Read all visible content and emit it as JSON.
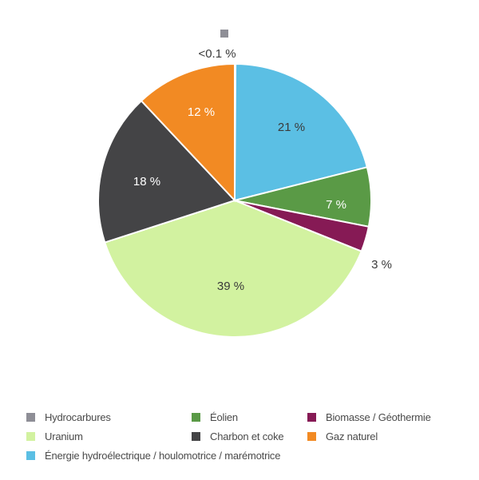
{
  "chart_data": {
    "type": "pie",
    "title": "",
    "start_angle_deg": 0,
    "direction": "clockwise",
    "slices": [
      {
        "name": "Hydrocarbures",
        "value": 0.1,
        "label": "<0.1 %",
        "color": "#8e8e96",
        "label_color": "#3a3a3a",
        "label_outside": true
      },
      {
        "name": "Énergie hydroélectrique / houlomotrice / marémotrice",
        "value": 21,
        "label": "21 %",
        "color": "#5bbfe4",
        "label_color": "#3a3a3a",
        "label_outside": false
      },
      {
        "name": "Éolien",
        "value": 7,
        "label": "7 %",
        "color": "#5a9a46",
        "label_color": "#ffffff",
        "label_outside": false
      },
      {
        "name": "Biomasse / Géothermie",
        "value": 3,
        "label": "3 %",
        "color": "#861a55",
        "label_color": "#3a3a3a",
        "label_outside": true
      },
      {
        "name": "Uranium",
        "value": 39,
        "label": "39 %",
        "color": "#d2f2a0",
        "label_color": "#3a3a3a",
        "label_outside": false
      },
      {
        "name": "Charbon et coke",
        "value": 18,
        "label": "18 %",
        "color": "#444446",
        "label_color": "#ffffff",
        "label_outside": false
      },
      {
        "name": "Gaz naturel",
        "value": 12,
        "label": "12 %",
        "color": "#f28a23",
        "label_color": "#ffffff",
        "label_outside": false
      }
    ],
    "legend_position": "bottom",
    "legend": [
      {
        "label": "Hydrocarbures",
        "color": "#8e8e96"
      },
      {
        "label": "Éolien",
        "color": "#5a9a46"
      },
      {
        "label": "Biomasse / Géothermie",
        "color": "#861a55"
      },
      {
        "label": "Uranium",
        "color": "#d2f2a0"
      },
      {
        "label": "Charbon et coke",
        "color": "#444446"
      },
      {
        "label": "Gaz naturel",
        "color": "#f28a23"
      },
      {
        "label": "Énergie hydroélectrique / houlomotrice / marémotrice",
        "color": "#5bbfe4"
      }
    ]
  },
  "legend": {
    "items": [
      {
        "label": "Hydrocarbures",
        "color": "#8e8e96"
      },
      {
        "label": "Éolien",
        "color": "#5a9a46"
      },
      {
        "label": "Biomasse / Géothermie",
        "color": "#861a55"
      },
      {
        "label": "Uranium",
        "color": "#d2f2a0"
      },
      {
        "label": "Charbon et coke",
        "color": "#444446"
      },
      {
        "label": "Gaz naturel",
        "color": "#f28a23"
      },
      {
        "label": "Énergie hydroélectrique / houlomotrice / marémotrice",
        "color": "#5bbfe4"
      }
    ]
  }
}
